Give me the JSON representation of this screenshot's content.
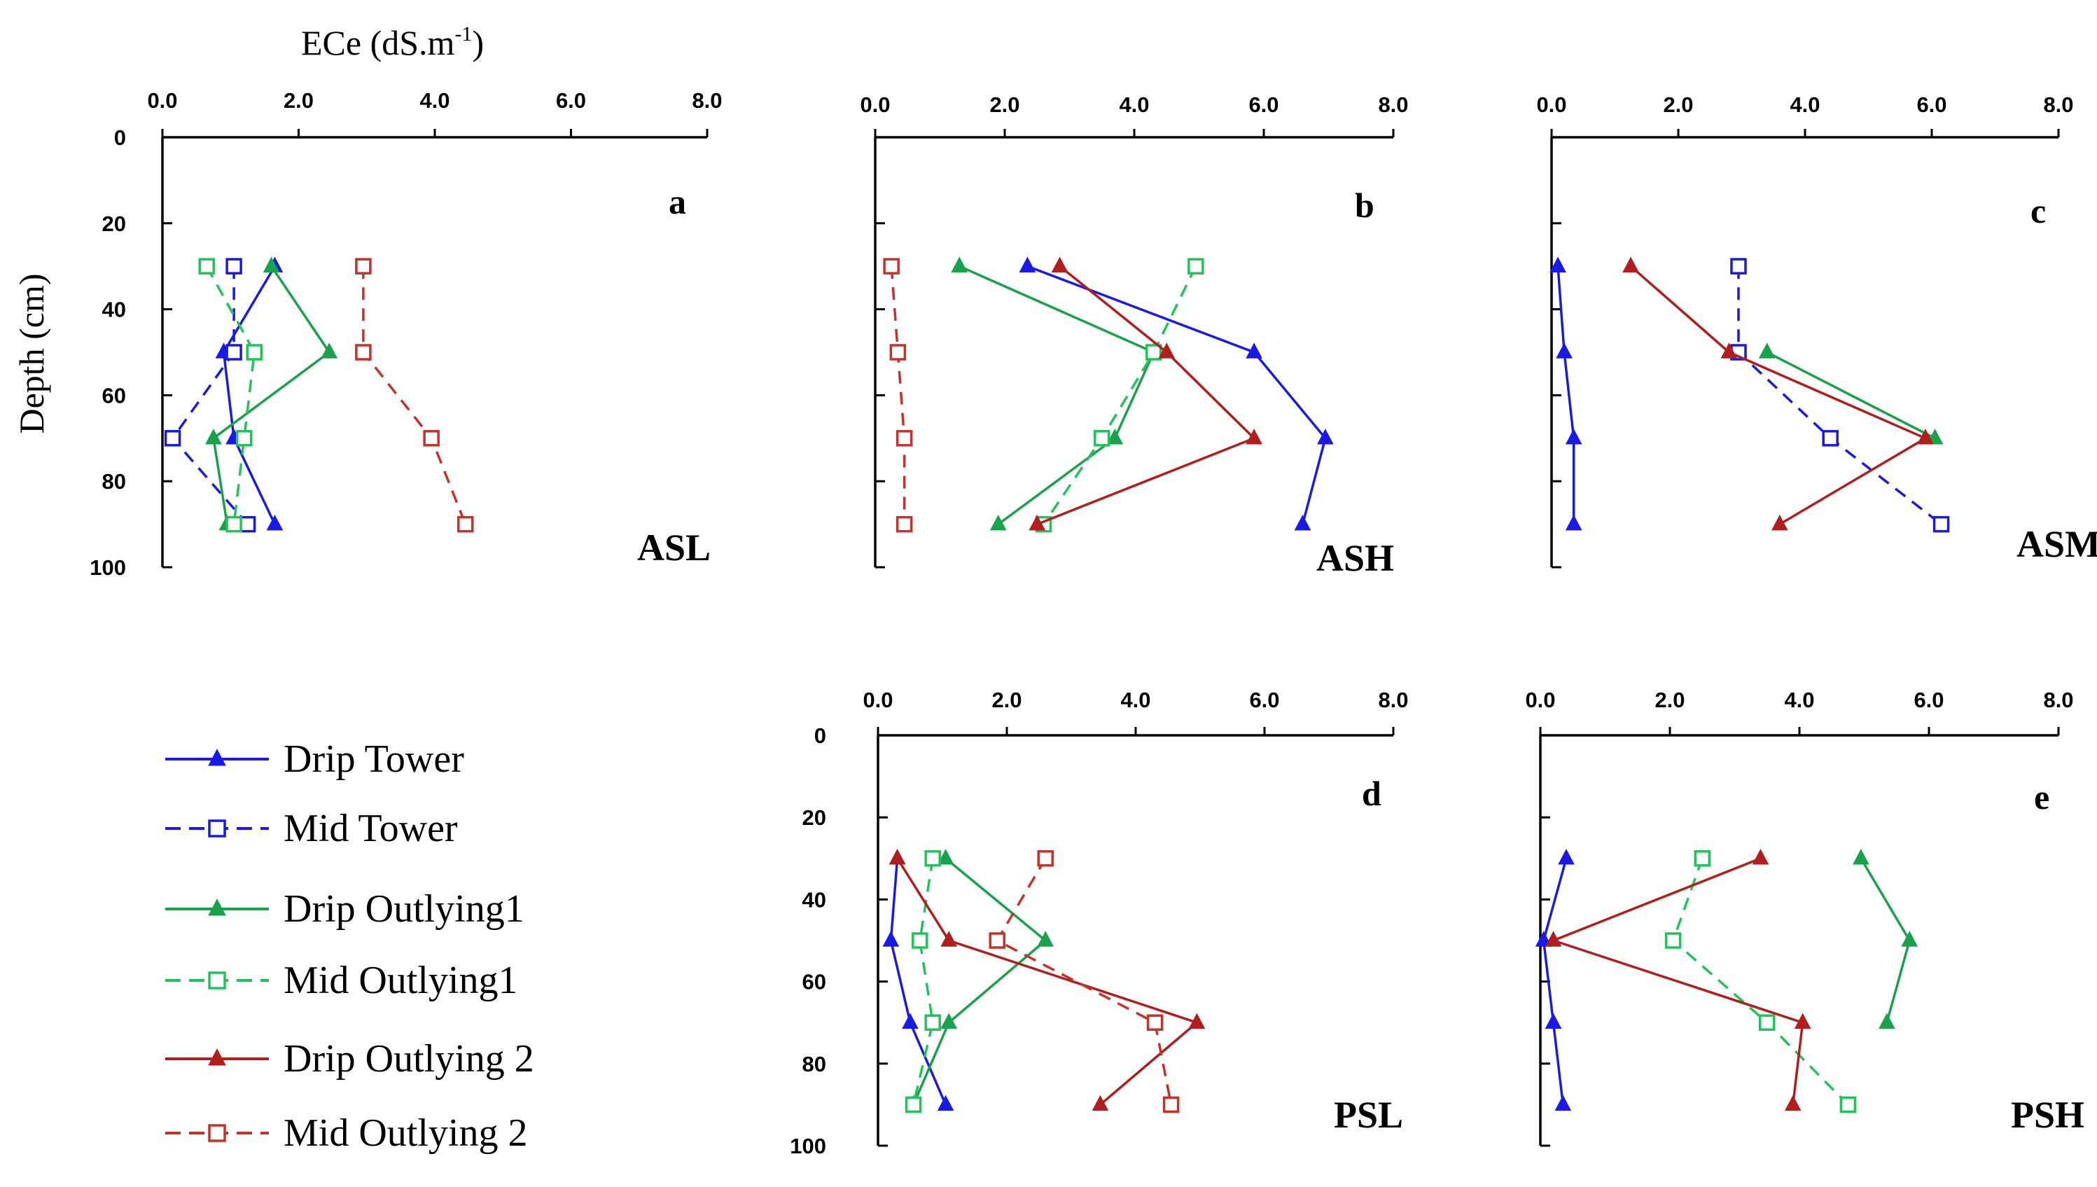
{
  "chart_data": {
    "type": "line",
    "x_title": "ECe (dS.m",
    "x_title_sup": "-1",
    "x_title_close": ")",
    "y_title": "Depth (cm)",
    "xlim": [
      0,
      8
    ],
    "ylim": [
      0,
      100
    ],
    "x_ticks": [
      "0.0",
      "2.0",
      "4.0",
      "6.0",
      "8.0"
    ],
    "y_ticks": [
      "0",
      "20",
      "40",
      "60",
      "80",
      "100"
    ],
    "legend": [
      {
        "name": "Drip Tower",
        "color": "#1a1ae6",
        "marker": "triangle",
        "dash": false
      },
      {
        "name": "Mid Tower",
        "color": "#1a1ae6",
        "marker": "square",
        "dash": true
      },
      {
        "name": "Drip Outlying1",
        "color": "#18a24b",
        "marker": "triangle",
        "dash": false
      },
      {
        "name": "Mid Outlying1",
        "color": "#22c35a",
        "marker": "square",
        "dash": true
      },
      {
        "name": "Drip Outlying 2",
        "color": "#b01e1e",
        "marker": "triangle",
        "dash": false
      },
      {
        "name": "Mid Outlying 2",
        "color": "#c8302a",
        "marker": "square",
        "dash": true
      }
    ],
    "panels": [
      {
        "letter": "a",
        "site": "ASL",
        "series": [
          {
            "name": "Drip Tower",
            "depth": [
              30,
              50,
              70,
              90
            ],
            "ece": [
              1.65,
              0.9,
              1.05,
              1.65
            ]
          },
          {
            "name": "Mid Tower",
            "depth": [
              30,
              50,
              70,
              90
            ],
            "ece": [
              1.05,
              1.05,
              0.15,
              1.25
            ]
          },
          {
            "name": "Drip Outlying1",
            "depth": [
              30,
              50,
              70,
              90
            ],
            "ece": [
              1.6,
              2.45,
              0.75,
              0.95
            ]
          },
          {
            "name": "Mid Outlying1",
            "depth": [
              30,
              50,
              70,
              90
            ],
            "ece": [
              0.65,
              1.35,
              1.2,
              1.05
            ]
          },
          {
            "name": "Mid Outlying 2",
            "depth": [
              30,
              50,
              70,
              90
            ],
            "ece": [
              2.95,
              2.95,
              3.95,
              4.45
            ]
          }
        ]
      },
      {
        "letter": "b",
        "site": "ASH",
        "series": [
          {
            "name": "Drip Tower",
            "depth": [
              30,
              50,
              70,
              90
            ],
            "ece": [
              2.35,
              5.85,
              6.95,
              6.6
            ]
          },
          {
            "name": "Drip Outlying1",
            "depth": [
              30,
              50,
              70,
              90
            ],
            "ece": [
              1.3,
              4.3,
              3.7,
              1.9
            ]
          },
          {
            "name": "Mid Outlying1",
            "depth": [
              30,
              50,
              70,
              90
            ],
            "ece": [
              4.95,
              4.3,
              3.5,
              2.6
            ]
          },
          {
            "name": "Drip Outlying 2",
            "depth": [
              30,
              50,
              70,
              90
            ],
            "ece": [
              2.85,
              4.5,
              5.85,
              2.5
            ]
          },
          {
            "name": "Mid Outlying 2",
            "depth": [
              30,
              50,
              70,
              90
            ],
            "ece": [
              0.25,
              0.35,
              0.45,
              0.45
            ]
          }
        ]
      },
      {
        "letter": "c",
        "site": "ASM",
        "series": [
          {
            "name": "Drip Tower",
            "depth": [
              30,
              50,
              70,
              90
            ],
            "ece": [
              0.1,
              0.2,
              0.35,
              0.35
            ]
          },
          {
            "name": "Mid Tower",
            "depth": [
              30,
              50,
              70,
              90
            ],
            "ece": [
              2.95,
              2.95,
              4.4,
              6.15
            ]
          },
          {
            "name": "Drip Outlying1",
            "depth": [
              50,
              70
            ],
            "ece": [
              3.4,
              6.05
            ]
          },
          {
            "name": "Drip Outlying 2",
            "depth": [
              30,
              50,
              70,
              90
            ],
            "ece": [
              1.25,
              2.8,
              5.9,
              3.6
            ]
          }
        ]
      },
      {
        "letter": "d",
        "site": "PSL",
        "series": [
          {
            "name": "Drip Tower",
            "depth": [
              30,
              50,
              70,
              90
            ],
            "ece": [
              0.3,
              0.2,
              0.5,
              1.05
            ]
          },
          {
            "name": "Drip Outlying1",
            "depth": [
              30,
              50,
              70,
              90
            ],
            "ece": [
              1.05,
              2.6,
              1.1,
              0.55
            ]
          },
          {
            "name": "Mid Outlying1",
            "depth": [
              30,
              50,
              70,
              90
            ],
            "ece": [
              0.85,
              0.65,
              0.85,
              0.55
            ]
          },
          {
            "name": "Drip Outlying 2",
            "depth": [
              30,
              50,
              70,
              90
            ],
            "ece": [
              0.3,
              1.1,
              4.95,
              3.45
            ]
          },
          {
            "name": "Mid Outlying 2",
            "depth": [
              30,
              50,
              70,
              90
            ],
            "ece": [
              2.6,
              1.85,
              4.3,
              4.55
            ]
          }
        ]
      },
      {
        "letter": "e",
        "site": "PSH",
        "series": [
          {
            "name": "Drip Tower",
            "depth": [
              30,
              50,
              70,
              90
            ],
            "ece": [
              0.4,
              0.05,
              0.2,
              0.35
            ]
          },
          {
            "name": "Drip Outlying1",
            "depth": [
              30,
              50,
              70
            ],
            "ece": [
              4.95,
              5.7,
              5.35
            ]
          },
          {
            "name": "Mid Outlying1",
            "depth": [
              30,
              50,
              70,
              90
            ],
            "ece": [
              2.5,
              2.05,
              3.5,
              4.75
            ]
          },
          {
            "name": "Drip Outlying 2",
            "depth": [
              30,
              50,
              70,
              90
            ],
            "ece": [
              3.4,
              0.2,
              4.05,
              3.9
            ]
          }
        ]
      }
    ]
  }
}
